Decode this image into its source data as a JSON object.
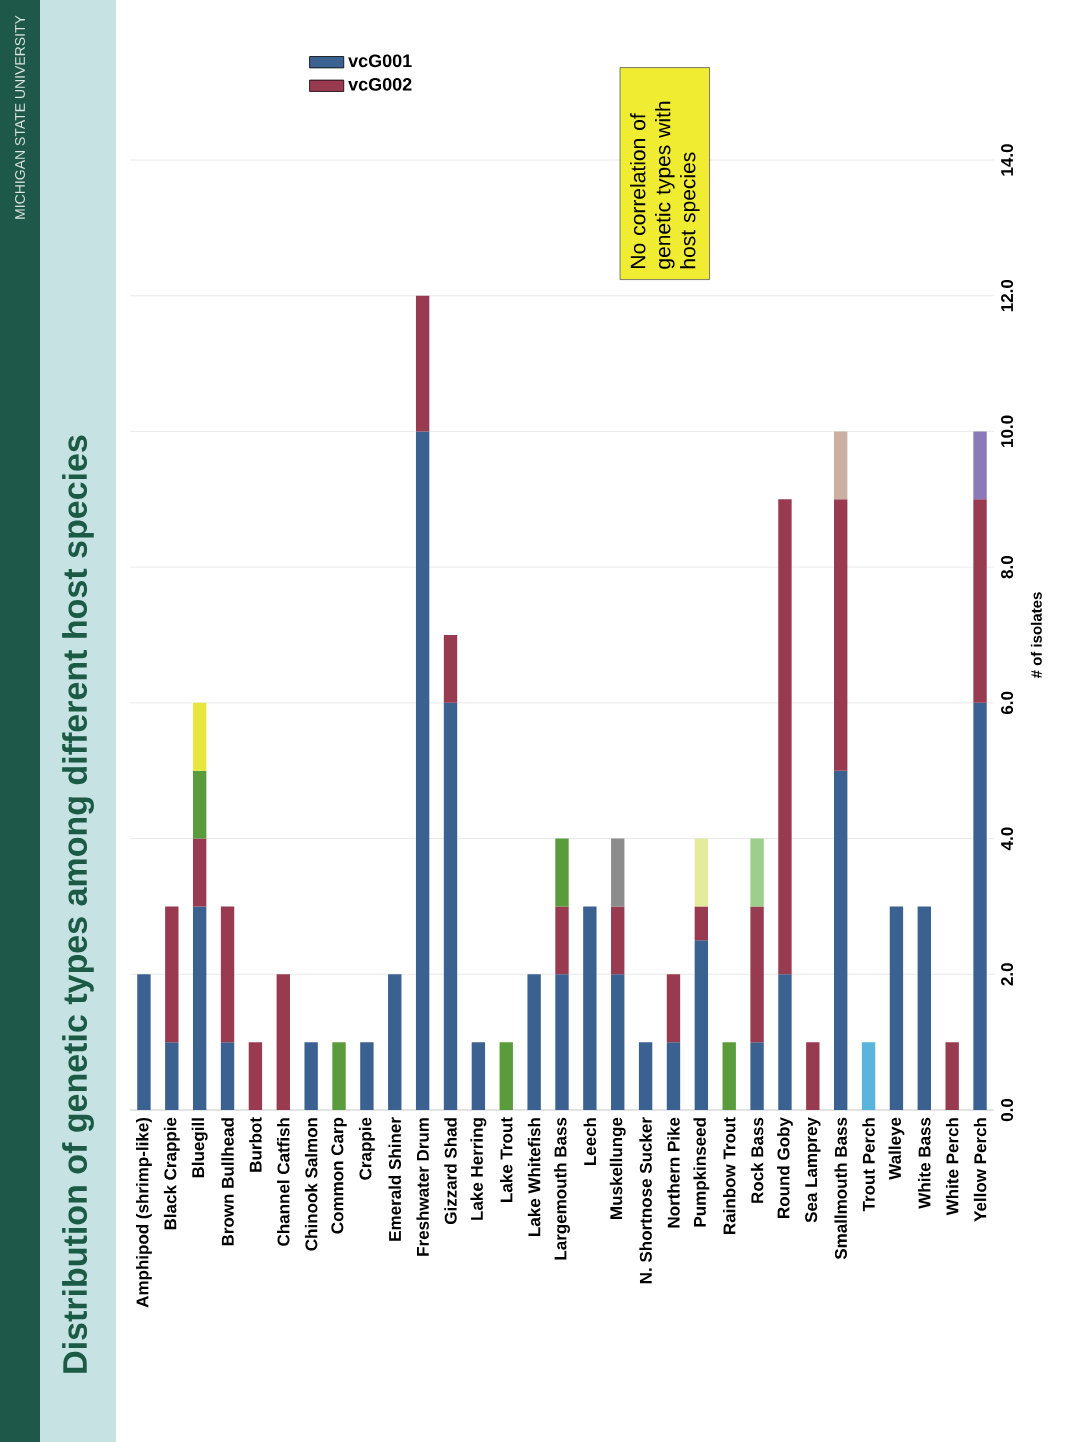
{
  "chart_data": {
    "type": "bar",
    "stacked": true,
    "title": "Distribution of genetic types among different host species",
    "ylabel": "# of isolates",
    "annotations": [
      "MICHIGAN STATE UNIVERSITY",
      "No correlation of genetic types with host species"
    ],
    "categories": [
      "Amphipod (shrimp-like)",
      "Black Crappie",
      "Bluegill",
      "Brown Bullhead",
      "Burbot",
      "Channel Catfish",
      "Chinook Salmon",
      "Common Carp",
      "Crappie",
      "Emerald Shiner",
      "Freshwater Drum",
      "Gizzard Shad",
      "Lake Herring",
      "Lake Trout",
      "Lake Whitefish",
      "Largemouth Bass",
      "Leech",
      "Muskellunge",
      "N. Shortnose Sucker",
      "Northern Pike",
      "Pumpkinseed",
      "Rainbow Trout",
      "Rock Bass",
      "Round Goby",
      "Sea Lamprey",
      "Smallmouth Bass",
      "Trout Perch",
      "Walleye",
      "White Bass",
      "White Perch",
      "Yellow Perch"
    ],
    "series": [
      {
        "name": "vcG001",
        "color": "#3b6190",
        "values": [
          2,
          1,
          3,
          1,
          null,
          null,
          1,
          null,
          1,
          2,
          10,
          6,
          1,
          null,
          2,
          2,
          3,
          2,
          1,
          1,
          2.5,
          null,
          1,
          2,
          null,
          5,
          null,
          3,
          3,
          null,
          6
        ]
      },
      {
        "name": "vcG002",
        "color": "#983b50",
        "values": [
          null,
          2,
          1,
          2,
          1,
          2,
          null,
          null,
          null,
          null,
          2,
          1,
          null,
          null,
          null,
          1,
          null,
          1,
          null,
          1,
          0.5,
          null,
          2,
          7,
          1,
          4,
          null,
          null,
          null,
          1,
          3
        ]
      },
      {
        "color": "#5a9c3c",
        "values": [
          null,
          null,
          1,
          null,
          null,
          null,
          null,
          1,
          null,
          null,
          null,
          null,
          null,
          1,
          null,
          1,
          null,
          null,
          null,
          null,
          null,
          1,
          null,
          null,
          null,
          null,
          null,
          null,
          null,
          null,
          null
        ]
      },
      {
        "color": "#e6e63c",
        "values": [
          null,
          null,
          1,
          null,
          null,
          null,
          null,
          null,
          null,
          null,
          null,
          null,
          null,
          null,
          null,
          null,
          null,
          null,
          null,
          null,
          null,
          null,
          null,
          null,
          null,
          null,
          null,
          null,
          null,
          null,
          null
        ]
      },
      {
        "color": "#8c8c8c",
        "values": [
          null,
          null,
          null,
          null,
          null,
          null,
          null,
          null,
          null,
          null,
          null,
          null,
          null,
          null,
          null,
          null,
          null,
          1,
          null,
          null,
          null,
          null,
          null,
          null,
          null,
          null,
          null,
          null,
          null,
          null,
          null
        ]
      },
      {
        "color": "#e4eb9c",
        "values": [
          null,
          null,
          null,
          null,
          null,
          null,
          null,
          null,
          null,
          null,
          null,
          null,
          null,
          null,
          null,
          null,
          null,
          null,
          null,
          null,
          1,
          null,
          null,
          null,
          null,
          null,
          null,
          null,
          null,
          null,
          null
        ]
      },
      {
        "color": "#9ccf8c",
        "values": [
          null,
          null,
          null,
          null,
          null,
          null,
          null,
          null,
          null,
          null,
          null,
          null,
          null,
          null,
          null,
          null,
          null,
          null,
          null,
          null,
          null,
          null,
          1,
          null,
          null,
          null,
          null,
          null,
          null,
          null,
          null
        ]
      },
      {
        "color": "#c9b0a2",
        "values": [
          null,
          null,
          null,
          null,
          null,
          null,
          null,
          null,
          null,
          null,
          null,
          null,
          null,
          null,
          null,
          null,
          null,
          null,
          null,
          null,
          null,
          null,
          null,
          null,
          null,
          1,
          null,
          null,
          null,
          null,
          null
        ]
      },
      {
        "color": "#5ab4dc",
        "values": [
          null,
          null,
          null,
          null,
          null,
          null,
          null,
          null,
          null,
          null,
          null,
          null,
          null,
          null,
          null,
          null,
          null,
          null,
          null,
          null,
          null,
          null,
          null,
          null,
          null,
          null,
          1,
          null,
          null,
          null,
          null
        ]
      },
      {
        "color": "#8a7ab8",
        "values": [
          null,
          null,
          null,
          null,
          null,
          null,
          null,
          null,
          null,
          null,
          null,
          null,
          null,
          null,
          null,
          null,
          null,
          null,
          null,
          null,
          null,
          null,
          null,
          null,
          null,
          null,
          null,
          null,
          null,
          null,
          1
        ]
      }
    ],
    "ylim": [
      0,
      14
    ],
    "yticks": [
      {
        "value": 0,
        "label": "0.0"
      },
      {
        "value": 2,
        "label": "2.0"
      },
      {
        "value": 4,
        "label": "4.0"
      },
      {
        "value": 6,
        "label": "6.0"
      },
      {
        "value": 8,
        "label": "8.0"
      },
      {
        "value": 10,
        "label": "10.0"
      },
      {
        "value": 12,
        "label": "12.0"
      },
      {
        "value": 14,
        "label": "14.0"
      }
    ],
    "grid": "y",
    "legend": "top left"
  }
}
